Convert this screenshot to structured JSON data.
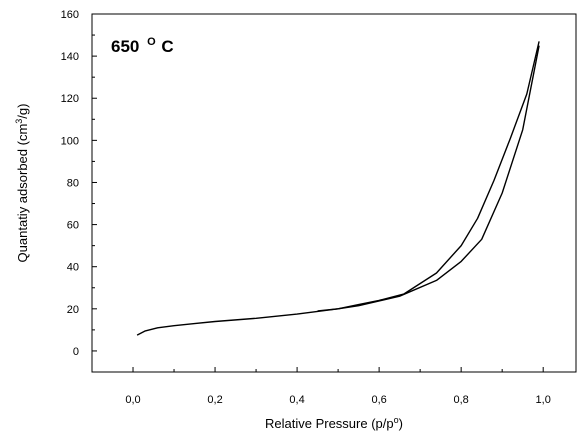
{
  "chart_data": {
    "type": "line",
    "title": "",
    "annotation": {
      "main": "650",
      "sup": "O",
      "unit": "C"
    },
    "xlabel": {
      "main": "Relative Pressure (p/p",
      "sup": "o",
      "end": ")"
    },
    "ylabel": {
      "main": "Quantatiy adsorbed (cm",
      "sup": "3",
      "end": "/g)"
    },
    "xlim": [
      -0.1,
      1.08
    ],
    "ylim": [
      -10,
      160
    ],
    "xticks": [
      "0,0",
      "0,2",
      "0,4",
      "0,6",
      "0,8",
      "1,0"
    ],
    "xtick_values": [
      0,
      0.2,
      0.4,
      0.6,
      0.8,
      1.0
    ],
    "yticks": [
      "0",
      "20",
      "40",
      "60",
      "80",
      "100",
      "120",
      "140",
      "160"
    ],
    "ytick_values": [
      0,
      20,
      40,
      60,
      80,
      100,
      120,
      140,
      160
    ],
    "grid": false,
    "legend": "none",
    "series": [
      {
        "x": [
          0.01,
          0.03,
          0.06,
          0.1,
          0.15,
          0.2,
          0.3,
          0.4,
          0.5,
          0.55,
          0.65,
          0.74,
          0.8,
          0.85,
          0.9,
          0.95,
          0.99
        ],
        "y": [
          7.5,
          9.5,
          11,
          12,
          13,
          14,
          15.5,
          17.5,
          20,
          21.5,
          26,
          33.5,
          42.5,
          53,
          75,
          105,
          145
        ]
      },
      {
        "x": [
          0.99,
          0.96,
          0.92,
          0.88,
          0.84,
          0.8,
          0.74,
          0.66,
          0.6,
          0.55,
          0.5,
          0.45
        ],
        "y": [
          147,
          122,
          101,
          81,
          63,
          50,
          37,
          27,
          24,
          22,
          20,
          19
        ]
      }
    ]
  }
}
